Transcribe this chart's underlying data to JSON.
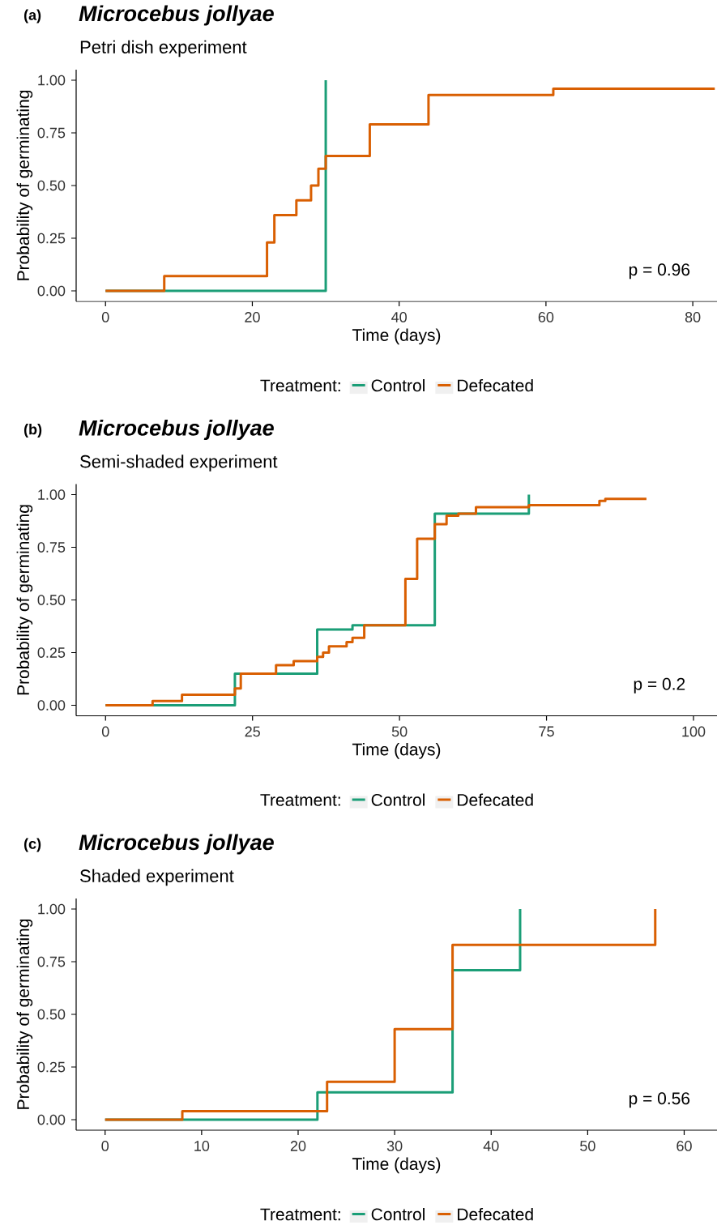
{
  "chart_data": [
    {
      "type": "step",
      "title": "Microcebus jollyae",
      "subtitle": "Petri dish experiment",
      "annotations": [
        "(a)",
        "p = 0.96"
      ],
      "xlabel": "Time (days)",
      "ylabel": "Probability of germinating",
      "legend_title": "Treatment:",
      "legend": "bottom",
      "xlim": [
        -4,
        83.3
      ],
      "ylim": [
        -0.05,
        1.05
      ],
      "xticks": [
        0,
        20,
        40,
        60,
        80
      ],
      "yticks": [
        {
          "value": 0,
          "label": "0.00"
        },
        {
          "value": 0.25,
          "label": "0.25"
        },
        {
          "value": 0.5,
          "label": "0.50"
        },
        {
          "value": 0.75,
          "label": "0.75"
        },
        {
          "value": 1,
          "label": "1.00"
        }
      ],
      "series": [
        {
          "name": "Control",
          "color": "#1b9e77",
          "x": [
            0,
            30
          ],
          "values": [
            0,
            1
          ]
        },
        {
          "name": "Defecated",
          "color": "#d95f02",
          "x": [
            0,
            8,
            22,
            23,
            26,
            28,
            29,
            30,
            36,
            44,
            61,
            83
          ],
          "values": [
            0,
            0.07,
            0.23,
            0.36,
            0.43,
            0.5,
            0.58,
            0.64,
            0.79,
            0.93,
            0.96,
            0.96
          ]
        }
      ]
    },
    {
      "type": "step",
      "title": "Microcebus jollyae",
      "subtitle": "Semi-shaded experiment",
      "annotations": [
        "(b)",
        "p = 0.2"
      ],
      "xlabel": "Time (days)",
      "ylabel": "Probability of germinating",
      "legend_title": "Treatment:",
      "legend": "bottom",
      "xlim": [
        -5,
        104
      ],
      "ylim": [
        -0.05,
        1.05
      ],
      "xticks": [
        0,
        25,
        50,
        75,
        100
      ],
      "yticks": [
        {
          "value": 0,
          "label": "0.00"
        },
        {
          "value": 0.25,
          "label": "0.25"
        },
        {
          "value": 0.5,
          "label": "0.50"
        },
        {
          "value": 0.75,
          "label": "0.75"
        },
        {
          "value": 1,
          "label": "1.00"
        }
      ],
      "series": [
        {
          "name": "Control",
          "color": "#1b9e77",
          "x": [
            0,
            22,
            36,
            42,
            56,
            72
          ],
          "values": [
            0,
            0.15,
            0.36,
            0.38,
            0.91,
            1
          ]
        },
        {
          "name": "Defecated",
          "color": "#d95f02",
          "x": [
            0,
            8,
            13,
            22,
            23,
            29,
            32,
            36,
            37,
            38,
            41,
            42,
            44,
            51,
            53,
            56,
            58,
            60,
            63,
            72,
            84,
            85,
            92
          ],
          "values": [
            0,
            0.02,
            0.05,
            0.08,
            0.15,
            0.19,
            0.21,
            0.23,
            0.25,
            0.28,
            0.3,
            0.32,
            0.38,
            0.6,
            0.79,
            0.86,
            0.9,
            0.91,
            0.94,
            0.95,
            0.97,
            0.98,
            0.98
          ]
        }
      ]
    },
    {
      "type": "step",
      "title": "Microcebus jollyae",
      "subtitle": "Shaded experiment",
      "annotations": [
        "(c)",
        "p = 0.56"
      ],
      "xlabel": "Time (days)",
      "ylabel": "Probability of germinating",
      "legend_title": "Treatment:",
      "legend": "bottom",
      "xlim": [
        -3,
        63.4
      ],
      "ylim": [
        -0.05,
        1.05
      ],
      "xticks": [
        0,
        10,
        20,
        30,
        40,
        50,
        60
      ],
      "yticks": [
        {
          "value": 0,
          "label": "0.00"
        },
        {
          "value": 0.25,
          "label": "0.25"
        },
        {
          "value": 0.5,
          "label": "0.50"
        },
        {
          "value": 0.75,
          "label": "0.75"
        },
        {
          "value": 1,
          "label": "1.00"
        }
      ],
      "series": [
        {
          "name": "Control",
          "color": "#1b9e77",
          "x": [
            0,
            22,
            36,
            43
          ],
          "values": [
            0,
            0.13,
            0.71,
            1
          ]
        },
        {
          "name": "Defecated",
          "color": "#d95f02",
          "x": [
            0,
            8,
            23,
            30,
            36,
            57
          ],
          "values": [
            0,
            0.04,
            0.18,
            0.43,
            0.83,
            1
          ]
        }
      ]
    }
  ]
}
